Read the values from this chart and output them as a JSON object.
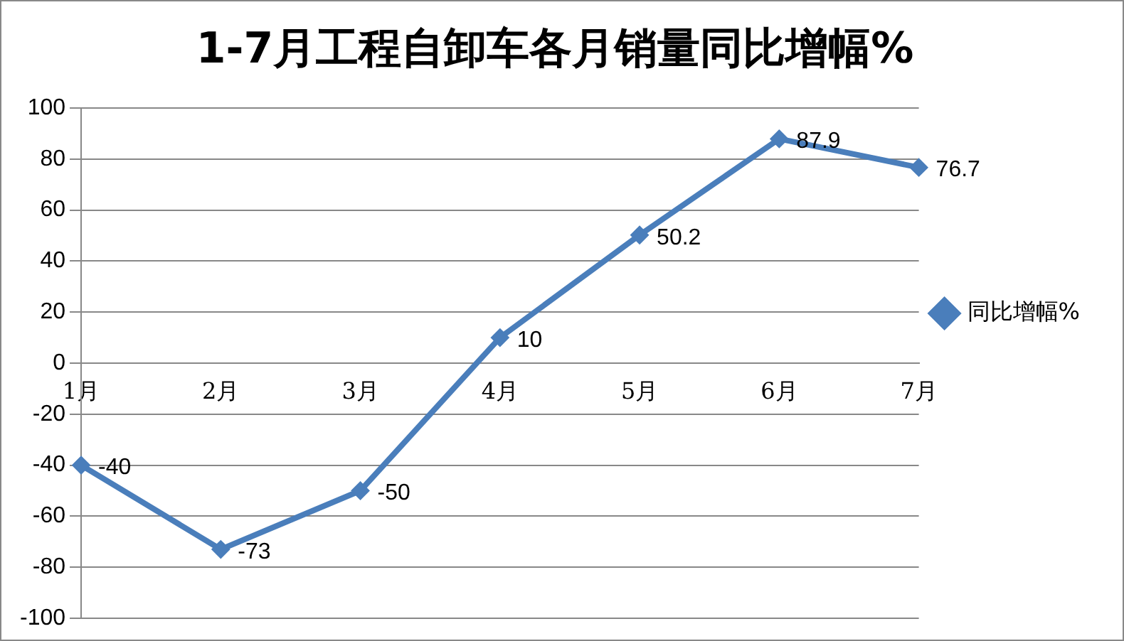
{
  "chart_data": {
    "type": "line",
    "title": "1-7月工程自卸车各月销量同比增幅%",
    "categories": [
      "1月",
      "2月",
      "3月",
      "4月",
      "5月",
      "6月",
      "7月"
    ],
    "series": [
      {
        "name": "同比增幅%",
        "color": "#4a7ebb",
        "values": [
          -40,
          -73,
          -50,
          10,
          50.2,
          87.9,
          76.7
        ]
      }
    ],
    "ylim": [
      -100,
      100
    ],
    "yticks": [
      -100,
      -80,
      -60,
      -40,
      -20,
      0,
      20,
      40,
      60,
      80,
      100
    ],
    "grid": "y",
    "legend": "right",
    "marker": "diamond",
    "line_style": "solid",
    "data_labels": true
  }
}
